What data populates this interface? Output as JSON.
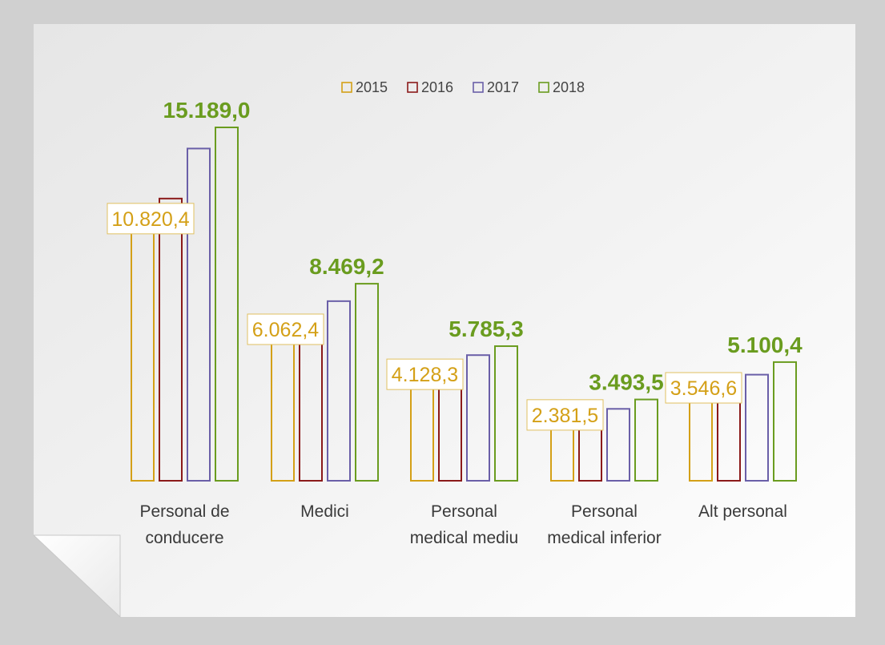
{
  "chart_data": {
    "type": "bar",
    "categories": [
      [
        "Personal de",
        "conducere"
      ],
      [
        "Medici"
      ],
      [
        "Personal",
        "medical mediu"
      ],
      [
        "Personal",
        "medical inferior"
      ],
      [
        "Alt personal"
      ]
    ],
    "series": [
      {
        "name": "2015",
        "color": "#d4a017",
        "values": [
          10820.4,
          6062.4,
          4128.3,
          2381.5,
          3546.6
        ]
      },
      {
        "name": "2016",
        "color": "#8b1a1a",
        "values": [
          12130,
          6800,
          4650,
          2840,
          3950
        ]
      },
      {
        "name": "2017",
        "color": "#6a5fa8",
        "values": [
          14280,
          7720,
          5400,
          3090,
          4560
        ]
      },
      {
        "name": "2018",
        "color": "#6a9c1f",
        "values": [
          15189.0,
          8469.2,
          5785.3,
          3493.5,
          5100.4
        ]
      }
    ],
    "data_labels": {
      "first": [
        "10.820,4",
        "6.062,4",
        "4.128,3",
        "2.381,5",
        "3.546,6"
      ],
      "last": [
        "15.189,0",
        "8.469,2",
        "5.785,3",
        "3.493,5",
        "5.100,4"
      ]
    },
    "ylim": [
      0,
      15189.0
    ],
    "legend_position": "top-center",
    "grid": false
  }
}
